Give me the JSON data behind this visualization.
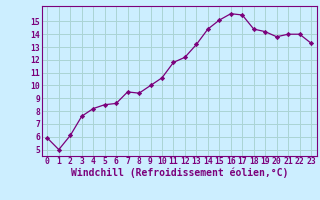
{
  "x": [
    0,
    1,
    2,
    3,
    4,
    5,
    6,
    7,
    8,
    9,
    10,
    11,
    12,
    13,
    14,
    15,
    16,
    17,
    18,
    19,
    20,
    21,
    22,
    23
  ],
  "y": [
    5.9,
    5.0,
    6.1,
    7.6,
    8.2,
    8.5,
    8.6,
    9.5,
    9.4,
    10.0,
    10.6,
    11.8,
    12.2,
    13.2,
    14.4,
    15.1,
    15.6,
    15.5,
    14.4,
    14.2,
    13.8,
    14.0,
    14.0,
    13.3
  ],
  "line_color": "#7b007b",
  "marker": "D",
  "marker_size": 2.2,
  "bg_color": "#cceeff",
  "grid_color": "#aad4d4",
  "xlabel": "Windchill (Refroidissement éolien,°C)",
  "xlabel_color": "#7b007b",
  "xlim": [
    -0.5,
    23.5
  ],
  "ylim": [
    4.5,
    16.2
  ],
  "yticks": [
    5,
    6,
    7,
    8,
    9,
    10,
    11,
    12,
    13,
    14,
    15
  ],
  "xticks": [
    0,
    1,
    2,
    3,
    4,
    5,
    6,
    7,
    8,
    9,
    10,
    11,
    12,
    13,
    14,
    15,
    16,
    17,
    18,
    19,
    20,
    21,
    22,
    23
  ],
  "tick_color": "#7b007b",
  "tick_labelsize": 5.8,
  "xlabel_fontsize": 7.0,
  "linewidth": 0.9
}
